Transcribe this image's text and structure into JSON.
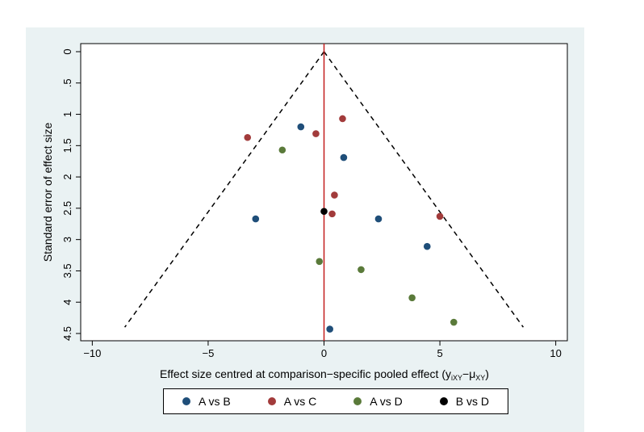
{
  "chart_data": {
    "type": "scatter",
    "xlabel": "Effect size centred at comparison−specific pooled effect (y",
    "xlabel_sub": "iXY",
    "xlabel_mid": "−μ",
    "xlabel_sub2": "XY",
    "xlabel_end": ")",
    "ylabel": "Standard error of effect size",
    "xlim": [
      -10.5,
      10.5
    ],
    "ylim": [
      0,
      4.5
    ],
    "y_reversed": true,
    "x_ticks": [
      -10,
      -5,
      0,
      5,
      10
    ],
    "x_tick_labels": [
      "−10",
      "−5",
      "0",
      "5",
      "10"
    ],
    "y_ticks": [
      0,
      0.5,
      1,
      1.5,
      2,
      2.5,
      3,
      3.5,
      4,
      4.5
    ],
    "y_tick_labels": [
      "0",
      ".5",
      "1",
      "1.5",
      "2",
      "2.5",
      "3",
      "3.5",
      "4",
      "4.5"
    ],
    "reference_line": {
      "x": 0,
      "color": "#c21d1d"
    },
    "funnel": {
      "apex": [
        0,
        0
      ],
      "left": [
        -8.6,
        4.4
      ],
      "right": [
        8.6,
        4.4
      ]
    },
    "legend_position": "bottom",
    "series": [
      {
        "name": "A vs B",
        "color": "#1f4e79",
        "points": [
          [
            -1.0,
            1.2
          ],
          [
            0.85,
            1.69
          ],
          [
            -2.95,
            2.67
          ],
          [
            2.35,
            2.67
          ],
          [
            4.45,
            3.11
          ],
          [
            0.25,
            4.43
          ]
        ]
      },
      {
        "name": "A vs C",
        "color": "#a23b3b",
        "points": [
          [
            0.8,
            1.07
          ],
          [
            -0.35,
            1.31
          ],
          [
            -3.3,
            1.37
          ],
          [
            0.45,
            2.29
          ],
          [
            0.35,
            2.59
          ],
          [
            5.0,
            2.63
          ]
        ]
      },
      {
        "name": "A vs D",
        "color": "#5a7a3a",
        "points": [
          [
            -1.8,
            1.57
          ],
          [
            -0.2,
            3.35
          ],
          [
            1.6,
            3.48
          ],
          [
            3.8,
            3.93
          ],
          [
            5.6,
            4.32
          ]
        ]
      },
      {
        "name": "B vs D",
        "color": "#000000",
        "points": [
          [
            0.0,
            2.55
          ]
        ]
      }
    ]
  }
}
